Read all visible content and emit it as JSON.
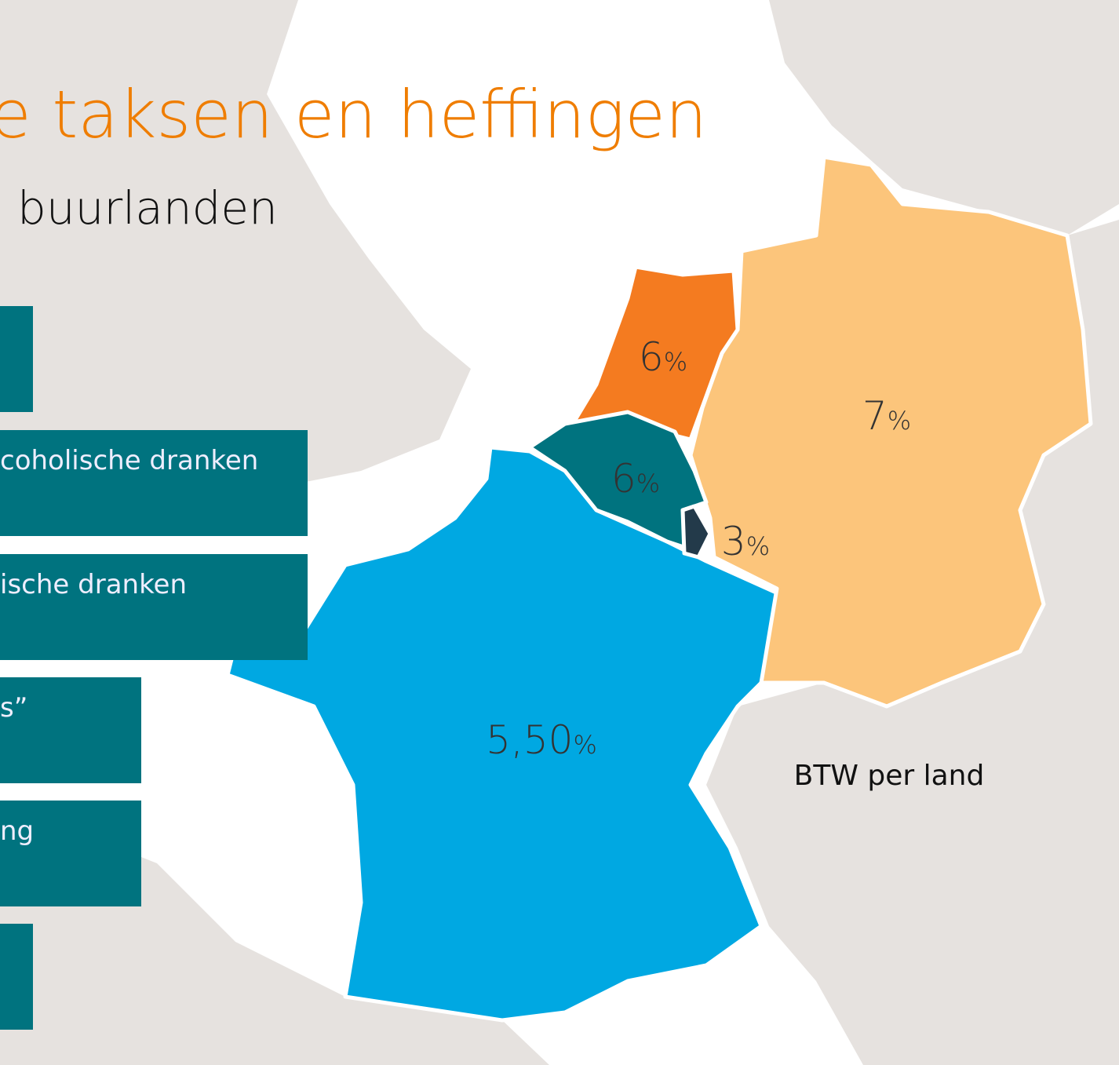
{
  "title": "e taksen en heffingen",
  "subtitle": "buurlanden",
  "boxes": [
    "coholische dranken",
    "ische dranken",
    "s”",
    "ng"
  ],
  "countries": [
    {
      "rate": "6",
      "unit": "%"
    },
    {
      "rate": "7",
      "unit": "%"
    },
    {
      "rate": "6",
      "unit": "%"
    },
    {
      "rate": "3",
      "unit": "%"
    },
    {
      "rate": "5,50",
      "unit": "%"
    }
  ],
  "legend": "BTW per land"
}
